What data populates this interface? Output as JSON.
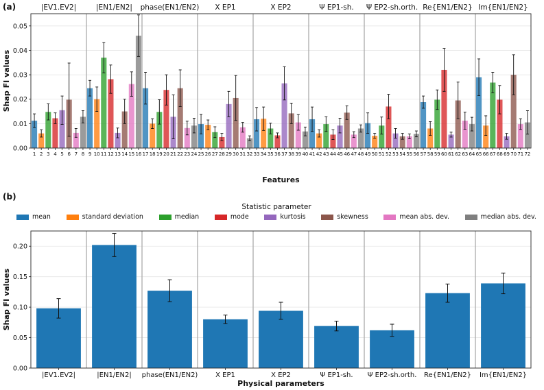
{
  "chart_data": [
    {
      "panel_label": "(a)",
      "type": "bar",
      "xlabel": "Features",
      "ylabel": "Shap FI values",
      "ylim": [
        0,
        0.055
      ],
      "yticks": [
        "0.00",
        "0.01",
        "0.02",
        "0.03",
        "0.04",
        "0.05"
      ],
      "grid": "horizontal",
      "group_labels": [
        "|EV1.EV2|",
        "|EN1/EN2|",
        "phase(EN1/EN2)",
        "X EP1",
        "X EP2",
        "Ψ EP1-sh.",
        "Ψ EP2-sh.orth.",
        "Re{EN1/EN2}",
        "Im{EN1/EN2}"
      ],
      "categories": [
        "1",
        "2",
        "3",
        "4",
        "5",
        "6",
        "7",
        "8",
        "9",
        "10",
        "11",
        "12",
        "13",
        "14",
        "15",
        "16",
        "17",
        "18",
        "19",
        "20",
        "21",
        "22",
        "23",
        "24",
        "25",
        "26",
        "27",
        "28",
        "29",
        "30",
        "31",
        "32",
        "33",
        "34",
        "35",
        "36",
        "37",
        "38",
        "39",
        "40",
        "41",
        "42",
        "43",
        "44",
        "45",
        "46",
        "47",
        "48",
        "49",
        "50",
        "51",
        "52",
        "53",
        "54",
        "55",
        "56",
        "57",
        "58",
        "59",
        "60",
        "61",
        "62",
        "63",
        "64",
        "65",
        "66",
        "67",
        "68",
        "69",
        "70",
        "71",
        "72"
      ],
      "values": [
        0.0112,
        0.006,
        0.0148,
        0.0122,
        0.0155,
        0.0198,
        0.0062,
        0.0128,
        0.0245,
        0.02,
        0.037,
        0.0282,
        0.0062,
        0.015,
        0.0262,
        0.046,
        0.0245,
        0.01,
        0.0148,
        0.0238,
        0.0128,
        0.0245,
        0.0082,
        0.0092,
        0.0098,
        0.0095,
        0.0065,
        0.0045,
        0.018,
        0.0205,
        0.0085,
        0.004,
        0.0118,
        0.012,
        0.008,
        0.0052,
        0.0265,
        0.0142,
        0.0105,
        0.0068,
        0.0118,
        0.006,
        0.0098,
        0.0055,
        0.0092,
        0.0145,
        0.0055,
        0.008,
        0.0102,
        0.005,
        0.0092,
        0.017,
        0.006,
        0.0048,
        0.0048,
        0.0058,
        0.0188,
        0.008,
        0.0198,
        0.032,
        0.0055,
        0.0195,
        0.0112,
        0.0098,
        0.029,
        0.0092,
        0.0268,
        0.0198,
        0.0048,
        0.03,
        0.0098,
        0.0105
      ],
      "errors": [
        0.0028,
        0.0015,
        0.0033,
        0.0022,
        0.0058,
        0.015,
        0.0018,
        0.0025,
        0.0032,
        0.005,
        0.0062,
        0.0058,
        0.002,
        0.005,
        0.005,
        0.0085,
        0.0065,
        0.002,
        0.005,
        0.0062,
        0.009,
        0.0075,
        0.0028,
        0.003,
        0.004,
        0.002,
        0.0022,
        0.0015,
        0.0052,
        0.0092,
        0.002,
        0.001,
        0.0048,
        0.0048,
        0.0022,
        0.001,
        0.0068,
        0.0042,
        0.0032,
        0.0018,
        0.005,
        0.0015,
        0.003,
        0.002,
        0.003,
        0.0028,
        0.0012,
        0.0015,
        0.0042,
        0.001,
        0.0035,
        0.005,
        0.002,
        0.0012,
        0.001,
        0.0012,
        0.0025,
        0.0028,
        0.004,
        0.0088,
        0.001,
        0.0075,
        0.0035,
        0.0028,
        0.0075,
        0.004,
        0.0042,
        0.0058,
        0.0012,
        0.0082,
        0.0022,
        0.0048
      ]
    },
    {
      "panel_label": "(b)",
      "type": "bar",
      "xlabel": "Physical parameters",
      "ylabel": "Shap FI values",
      "ylim": [
        0,
        0.225
      ],
      "yticks": [
        "0.00",
        "0.05",
        "0.10",
        "0.15",
        "0.20"
      ],
      "grid": "horizontal",
      "categories": [
        "|EV1.EV2|",
        "|EN1/EN2|",
        "phase(EN1/EN2)",
        "X EP1",
        "X EP2",
        "Ψ EP1-sh.",
        "Ψ EP2-sh.orth.",
        "Re{EN1/EN2}",
        "Im{EN1/EN2}"
      ],
      "values": [
        0.098,
        0.202,
        0.127,
        0.08,
        0.094,
        0.069,
        0.062,
        0.123,
        0.139
      ],
      "errors": [
        0.016,
        0.019,
        0.018,
        0.007,
        0.014,
        0.008,
        0.01,
        0.015,
        0.017
      ]
    }
  ],
  "legend": {
    "title": "Statistic parameter",
    "position": "top",
    "items": [
      {
        "label": "mean",
        "color": "#1f77b4"
      },
      {
        "label": "standard deviation",
        "color": "#ff7f0e"
      },
      {
        "label": "median",
        "color": "#2ca02c"
      },
      {
        "label": "mode",
        "color": "#d62728"
      },
      {
        "label": "kurtosis",
        "color": "#9467bd"
      },
      {
        "label": "skewness",
        "color": "#8c564b"
      },
      {
        "label": "mean abs. dev.",
        "color": "#e377c2"
      },
      {
        "label": "median abs. dev.",
        "color": "#7f7f7f"
      }
    ]
  }
}
